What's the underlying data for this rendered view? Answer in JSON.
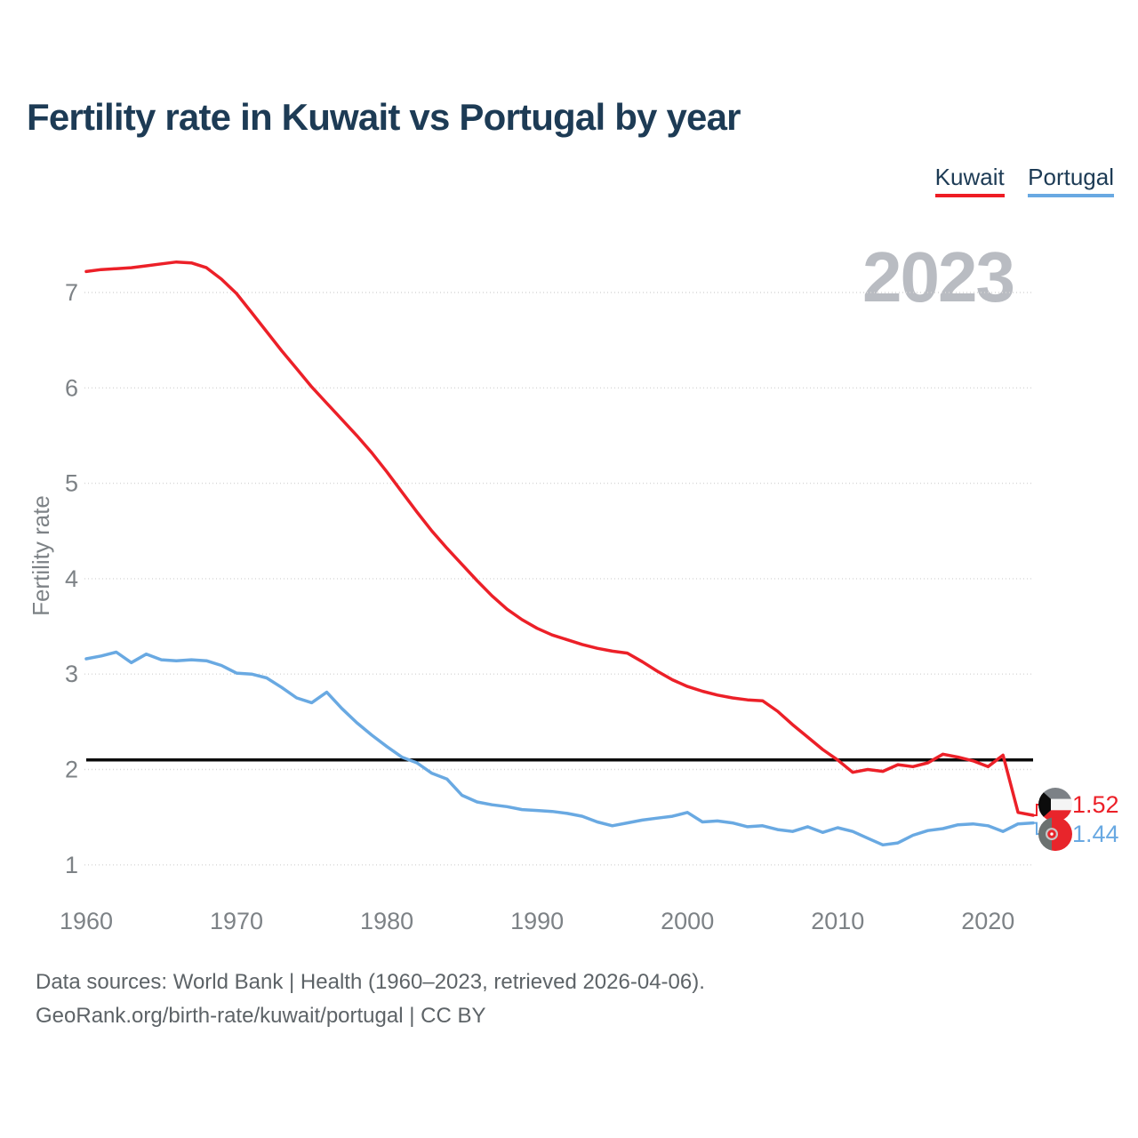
{
  "header": {
    "title": "Fertility rate in Kuwait vs Portugal by year"
  },
  "legend": {
    "kuwait": "Kuwait",
    "portugal": "Portugal"
  },
  "chart": {
    "watermark": "2023",
    "y_axis_label": "Fertility rate",
    "end_labels": {
      "kuwait": "1.52",
      "portugal": "1.44"
    }
  },
  "footer": {
    "line1": "Data sources: World Bank | Health (1960–2023, retrieved 2026-04-06).",
    "line2": "GeoRank.org/birth-rate/kuwait/portugal | CC BY"
  },
  "colors": {
    "kuwait": "#ec2028",
    "portugal": "#69a9e2",
    "reference_line": "#0a0a0a",
    "gridline": "#d7d7d7",
    "tick_gray": "#7d8286",
    "navy": "#1d3b55",
    "watermark_gray": "#b9bcc2",
    "flag_black": "#0c0c0c",
    "flag_gray_green": "#7c8186",
    "flag_dark_green": "#6b7170",
    "flag_red": "#e8252b",
    "flag_white": "#f4f4f4"
  },
  "chart_data": {
    "type": "line",
    "title": "Fertility rate in Kuwait vs Portugal by year",
    "xlabel": "",
    "ylabel": "Fertility rate",
    "x_range": [
      1960,
      2023
    ],
    "ylim": [
      1,
      7.4
    ],
    "x_ticks": [
      1960,
      1970,
      1980,
      1990,
      2000,
      2010,
      2020
    ],
    "y_ticks": [
      1,
      2,
      3,
      4,
      5,
      6,
      7
    ],
    "grid": "horizontal-dotted",
    "legend_position": "top-right",
    "reference_line": 2.1,
    "x": [
      1960,
      1961,
      1962,
      1963,
      1964,
      1965,
      1966,
      1967,
      1968,
      1969,
      1970,
      1971,
      1972,
      1973,
      1974,
      1975,
      1976,
      1977,
      1978,
      1979,
      1980,
      1981,
      1982,
      1983,
      1984,
      1985,
      1986,
      1987,
      1988,
      1989,
      1990,
      1991,
      1992,
      1993,
      1994,
      1995,
      1996,
      1997,
      1998,
      1999,
      2000,
      2001,
      2002,
      2003,
      2004,
      2005,
      2006,
      2007,
      2008,
      2009,
      2010,
      2011,
      2012,
      2013,
      2014,
      2015,
      2016,
      2017,
      2018,
      2019,
      2020,
      2021,
      2022,
      2023
    ],
    "series": [
      {
        "name": "Kuwait",
        "color": "#ec2028",
        "end_value": 1.52,
        "values": [
          7.22,
          7.24,
          7.25,
          7.26,
          7.28,
          7.3,
          7.32,
          7.31,
          7.26,
          7.14,
          6.99,
          6.79,
          6.59,
          6.39,
          6.2,
          6.01,
          5.84,
          5.67,
          5.5,
          5.32,
          5.12,
          4.91,
          4.7,
          4.5,
          4.32,
          4.15,
          3.98,
          3.82,
          3.68,
          3.57,
          3.48,
          3.41,
          3.36,
          3.31,
          3.27,
          3.24,
          3.22,
          3.13,
          3.03,
          2.94,
          2.87,
          2.82,
          2.78,
          2.75,
          2.73,
          2.72,
          2.61,
          2.47,
          2.34,
          2.21,
          2.1,
          1.97,
          2.0,
          1.98,
          2.05,
          2.03,
          2.07,
          2.16,
          2.13,
          2.09,
          2.03,
          2.15,
          1.55,
          1.52
        ]
      },
      {
        "name": "Portugal",
        "color": "#69a9e2",
        "end_value": 1.44,
        "values": [
          3.16,
          3.19,
          3.23,
          3.12,
          3.21,
          3.15,
          3.14,
          3.15,
          3.14,
          3.09,
          3.01,
          3.0,
          2.96,
          2.86,
          2.75,
          2.7,
          2.81,
          2.64,
          2.49,
          2.36,
          2.24,
          2.13,
          2.07,
          1.96,
          1.9,
          1.73,
          1.66,
          1.63,
          1.61,
          1.58,
          1.57,
          1.56,
          1.54,
          1.51,
          1.45,
          1.41,
          1.44,
          1.47,
          1.49,
          1.51,
          1.55,
          1.45,
          1.46,
          1.44,
          1.4,
          1.41,
          1.37,
          1.35,
          1.4,
          1.34,
          1.39,
          1.35,
          1.28,
          1.21,
          1.23,
          1.31,
          1.36,
          1.38,
          1.42,
          1.43,
          1.41,
          1.35,
          1.43,
          1.44
        ]
      }
    ]
  }
}
